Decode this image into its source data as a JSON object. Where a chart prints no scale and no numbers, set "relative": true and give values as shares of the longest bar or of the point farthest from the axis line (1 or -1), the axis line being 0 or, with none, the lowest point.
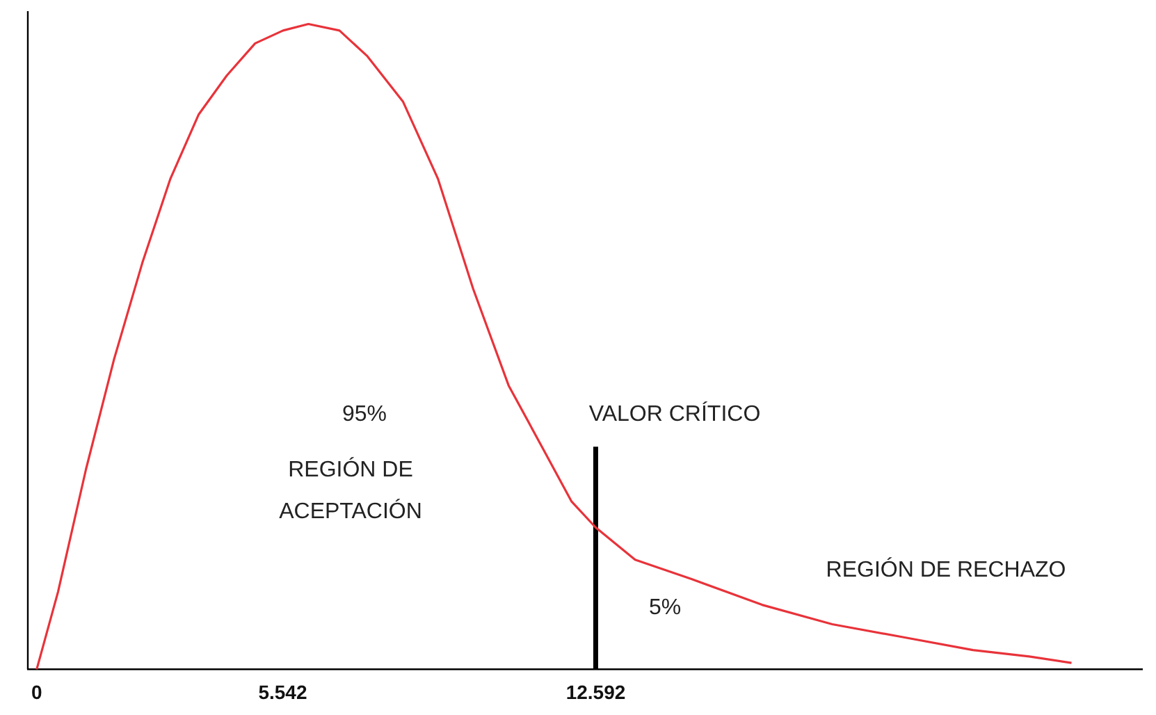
{
  "chart_data": {
    "type": "line",
    "relative": true,
    "xlim": [
      -0.2,
      24.9
    ],
    "xticks": [
      0,
      5.542,
      12.592
    ],
    "grid": false,
    "legend": false,
    "marker": "none",
    "line_style": "solid",
    "annotations": [
      "95%",
      "REGIÓN DE ACEPTACIÓN",
      "VALOR CRÍTICO",
      "5%",
      "REGIÓN DE RECHAZO"
    ],
    "series": [
      {
        "color": "#e8333a",
        "x": [
          0,
          0.48,
          1.11,
          1.74,
          2.38,
          3.01,
          3.65,
          4.28,
          4.92,
          5.55,
          6.12,
          6.82,
          7.45,
          8.25,
          9.04,
          9.83,
          10.63,
          11.42,
          12.05,
          12.59,
          13.48,
          14.75,
          16.34,
          17.92,
          19.51,
          21.09,
          22.36,
          23.31
        ],
        "values": [
          0,
          0.12,
          0.31,
          0.48,
          0.63,
          0.76,
          0.86,
          0.92,
          0.97,
          0.99,
          1,
          0.99,
          0.95,
          0.88,
          0.76,
          0.59,
          0.44,
          0.34,
          0.26,
          0.22,
          0.17,
          0.14,
          0.1,
          0.07,
          0.05,
          0.03,
          0.02,
          0.01
        ]
      },
      {
        "color": "#000000",
        "x": [
          12.592,
          12.592
        ],
        "values": [
          0,
          0.345
        ]
      }
    ]
  }
}
